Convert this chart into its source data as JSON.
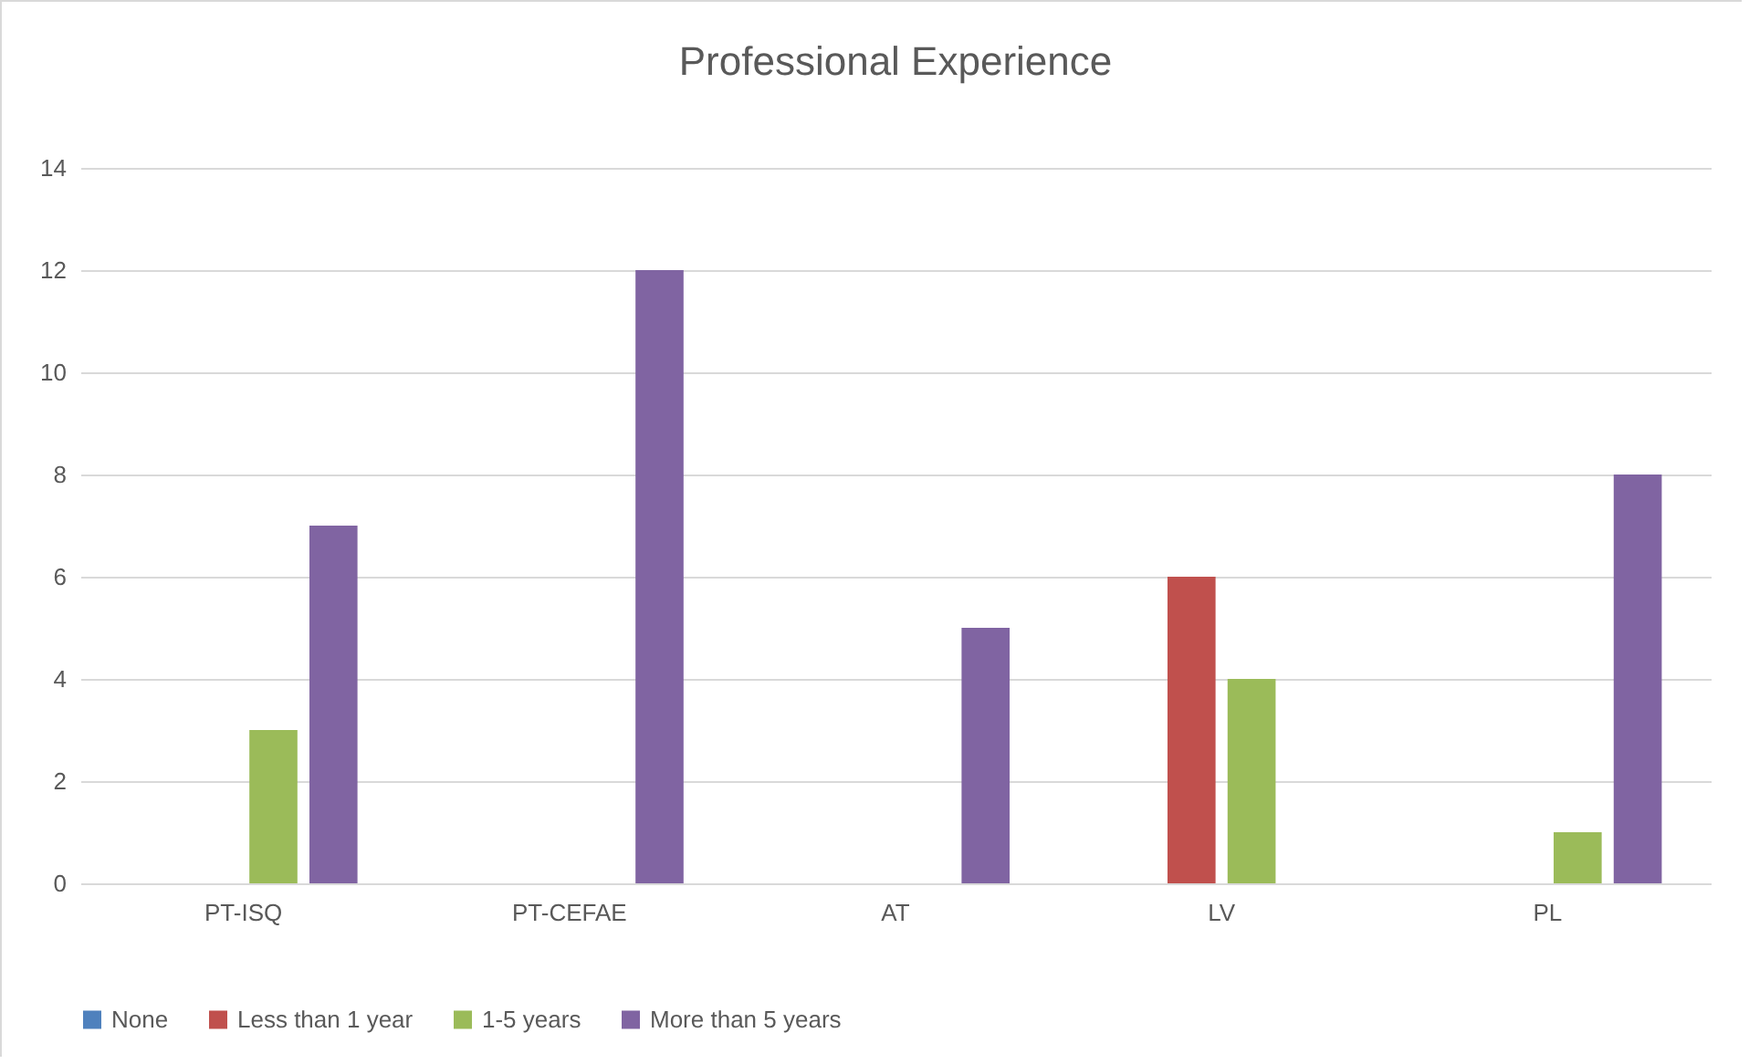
{
  "chart_data": {
    "type": "bar",
    "title": "Professional Experience",
    "categories": [
      "PT-ISQ",
      "PT-CEFAE",
      "AT",
      "LV",
      "PL"
    ],
    "series": [
      {
        "name": "None",
        "color": "#4f81bd",
        "values": [
          0,
          0,
          0,
          0,
          0
        ]
      },
      {
        "name": "Less than 1 year",
        "color": "#c0504d",
        "values": [
          0,
          0,
          0,
          6,
          0
        ]
      },
      {
        "name": "1-5 years",
        "color": "#9bbb59",
        "values": [
          3,
          0,
          0,
          4,
          1
        ]
      },
      {
        "name": "More than 5 years",
        "color": "#8064a2",
        "values": [
          7,
          12,
          5,
          0,
          8
        ]
      }
    ],
    "ylim": [
      0,
      14
    ],
    "yticks": [
      0,
      2,
      4,
      6,
      8,
      10,
      12,
      14
    ],
    "grid": true,
    "legend": "bottom"
  }
}
